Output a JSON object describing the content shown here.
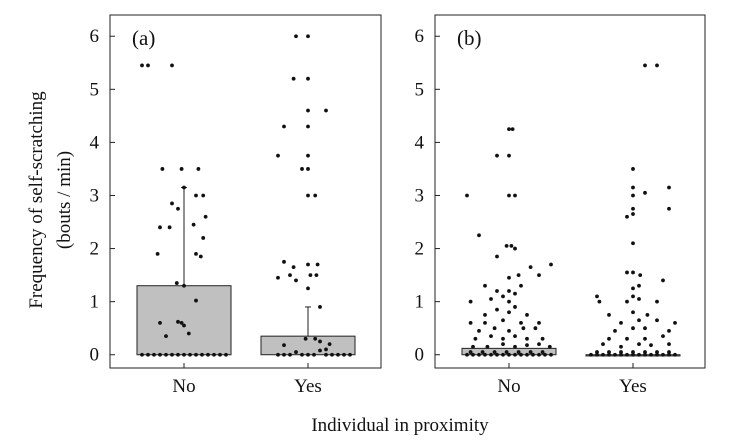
{
  "chart_data": [
    {
      "type": "bar",
      "panel_label": "(a)",
      "categories": [
        "No",
        "Yes"
      ],
      "values": [
        1.3,
        0.35
      ],
      "error_upper": [
        3.15,
        0.9
      ],
      "ylim": [
        -0.25,
        6.4
      ],
      "yticks": [
        0,
        1,
        2,
        3,
        4,
        5,
        6
      ],
      "bar_color": "#c0c0c0",
      "points": [
        [
          [
            -0.35,
            0
          ],
          [
            -0.3,
            0
          ],
          [
            -0.25,
            0
          ],
          [
            -0.2,
            0
          ],
          [
            -0.15,
            0
          ],
          [
            -0.1,
            0
          ],
          [
            -0.05,
            0
          ],
          [
            0,
            0
          ],
          [
            0.05,
            0
          ],
          [
            0.1,
            0
          ],
          [
            0.15,
            0
          ],
          [
            0.2,
            0
          ],
          [
            0.25,
            0
          ],
          [
            0.3,
            0
          ],
          [
            0.35,
            0
          ],
          [
            -0.35,
            5.45
          ],
          [
            -0.3,
            5.45
          ],
          [
            -0.1,
            5.45
          ],
          [
            -0.18,
            3.5
          ],
          [
            -0.02,
            3.5
          ],
          [
            0.12,
            3.5
          ],
          [
            0.0,
            3.15
          ],
          [
            0.1,
            3.0
          ],
          [
            0.16,
            3.0
          ],
          [
            -0.1,
            2.85
          ],
          [
            -0.05,
            2.75
          ],
          [
            0.08,
            2.45
          ],
          [
            0.18,
            2.6
          ],
          [
            -0.2,
            2.4
          ],
          [
            -0.12,
            2.4
          ],
          [
            0.16,
            2.2
          ],
          [
            -0.22,
            1.9
          ],
          [
            0.1,
            1.9
          ],
          [
            0.14,
            1.85
          ],
          [
            -0.06,
            1.35
          ],
          [
            0.0,
            1.3
          ],
          [
            0.1,
            1.02
          ],
          [
            -0.2,
            0.6
          ],
          [
            -0.05,
            0.62
          ],
          [
            -0.02,
            0.6
          ],
          [
            0.0,
            0.55
          ],
          [
            0.04,
            0.4
          ],
          [
            -0.15,
            0.35
          ]
        ],
        [
          [
            -0.25,
            0
          ],
          [
            -0.2,
            0
          ],
          [
            -0.15,
            0
          ],
          [
            -0.05,
            0
          ],
          [
            0.0,
            0
          ],
          [
            0.05,
            0
          ],
          [
            0.15,
            0
          ],
          [
            0.2,
            0
          ],
          [
            0.25,
            0
          ],
          [
            0.3,
            0
          ],
          [
            0.35,
            0
          ],
          [
            -0.1,
            0.05
          ],
          [
            0.1,
            0.08
          ],
          [
            -0.1,
            6.0
          ],
          [
            0.0,
            6.0
          ],
          [
            -0.12,
            5.2
          ],
          [
            0.0,
            5.2
          ],
          [
            0.0,
            4.6
          ],
          [
            0.15,
            4.6
          ],
          [
            -0.2,
            4.3
          ],
          [
            0.0,
            4.3
          ],
          [
            -0.25,
            3.75
          ],
          [
            0.0,
            3.75
          ],
          [
            -0.05,
            3.5
          ],
          [
            0.0,
            3.5
          ],
          [
            0.0,
            3.0
          ],
          [
            0.06,
            3.0
          ],
          [
            -0.2,
            1.75
          ],
          [
            -0.12,
            1.65
          ],
          [
            0.0,
            1.7
          ],
          [
            0.08,
            1.7
          ],
          [
            0.02,
            1.5
          ],
          [
            0.07,
            1.5
          ],
          [
            -0.25,
            1.45
          ],
          [
            -0.15,
            1.5
          ],
          [
            -0.1,
            1.4
          ],
          [
            0.0,
            1.25
          ],
          [
            0.1,
            0.9
          ],
          [
            0.06,
            0.3
          ],
          [
            -0.02,
            0.3
          ],
          [
            0.1,
            0.25
          ],
          [
            0.15,
            0.1
          ],
          [
            -0.2,
            0.18
          ],
          [
            0.18,
            0.2
          ]
        ]
      ]
    },
    {
      "type": "bar",
      "panel_label": "(b)",
      "categories": [
        "No",
        "Yes"
      ],
      "values": [
        0.12,
        0.0
      ],
      "error_upper": [
        0.12,
        0.0
      ],
      "ylim": [
        -0.25,
        6.4
      ],
      "yticks": [
        0,
        1,
        2,
        3,
        4,
        5,
        6
      ],
      "bar_color": "#c0c0c0",
      "points": [
        [
          [
            -0.35,
            0
          ],
          [
            -0.3,
            0
          ],
          [
            -0.25,
            0
          ],
          [
            -0.2,
            0
          ],
          [
            -0.15,
            0
          ],
          [
            -0.1,
            0
          ],
          [
            -0.05,
            0
          ],
          [
            0.0,
            0
          ],
          [
            0.05,
            0
          ],
          [
            0.1,
            0
          ],
          [
            0.15,
            0
          ],
          [
            0.2,
            0
          ],
          [
            0.25,
            0
          ],
          [
            0.3,
            0
          ],
          [
            0.35,
            0
          ],
          [
            -0.32,
            0.05
          ],
          [
            -0.22,
            0.05
          ],
          [
            -0.12,
            0.05
          ],
          [
            -0.02,
            0.05
          ],
          [
            0.08,
            0.05
          ],
          [
            0.18,
            0.05
          ],
          [
            0.28,
            0.05
          ],
          [
            -0.3,
            0.15
          ],
          [
            -0.18,
            0.15
          ],
          [
            -0.05,
            0.2
          ],
          [
            0.05,
            0.15
          ],
          [
            0.15,
            0.18
          ],
          [
            0.25,
            0.2
          ],
          [
            0.34,
            0.15
          ],
          [
            -0.28,
            0.3
          ],
          [
            -0.15,
            0.35
          ],
          [
            -0.05,
            0.3
          ],
          [
            0.05,
            0.35
          ],
          [
            0.15,
            0.3
          ],
          [
            0.28,
            0.3
          ],
          [
            -0.25,
            0.45
          ],
          [
            -0.12,
            0.5
          ],
          [
            0.0,
            0.45
          ],
          [
            0.12,
            0.5
          ],
          [
            0.22,
            0.5
          ],
          [
            -0.32,
            0.6
          ],
          [
            -0.2,
            0.6
          ],
          [
            -0.05,
            0.65
          ],
          [
            0.1,
            0.6
          ],
          [
            0.25,
            0.6
          ],
          [
            -0.2,
            0.75
          ],
          [
            0.0,
            0.8
          ],
          [
            0.15,
            0.75
          ],
          [
            -0.1,
            0.85
          ],
          [
            0.05,
            0.9
          ],
          [
            -0.32,
            1.0
          ],
          [
            -0.15,
            1.05
          ],
          [
            0.0,
            1.0
          ],
          [
            -0.05,
            1.1
          ],
          [
            0.05,
            1.15
          ],
          [
            0.0,
            1.2
          ],
          [
            -0.1,
            1.2
          ],
          [
            -0.2,
            1.3
          ],
          [
            0.1,
            1.3
          ],
          [
            0.0,
            1.45
          ],
          [
            0.08,
            1.5
          ],
          [
            0.25,
            1.5
          ],
          [
            0.18,
            1.65
          ],
          [
            0.35,
            1.7
          ],
          [
            -0.1,
            1.85
          ],
          [
            0.05,
            2.0
          ],
          [
            -0.02,
            2.05
          ],
          [
            0.02,
            2.05
          ],
          [
            -0.25,
            2.25
          ],
          [
            -0.35,
            3.0
          ],
          [
            0.0,
            3.0
          ],
          [
            0.05,
            3.0
          ],
          [
            -0.1,
            3.75
          ],
          [
            0.0,
            3.75
          ],
          [
            0.0,
            4.25
          ],
          [
            0.03,
            4.25
          ]
        ],
        [
          [
            -0.35,
            0
          ],
          [
            -0.3,
            0
          ],
          [
            -0.25,
            0
          ],
          [
            -0.2,
            0
          ],
          [
            -0.15,
            0
          ],
          [
            -0.1,
            0
          ],
          [
            -0.05,
            0
          ],
          [
            0.0,
            0
          ],
          [
            0.05,
            0
          ],
          [
            0.1,
            0
          ],
          [
            0.15,
            0
          ],
          [
            0.2,
            0
          ],
          [
            0.25,
            0
          ],
          [
            0.3,
            0
          ],
          [
            0.35,
            0
          ],
          [
            -0.3,
            0.05
          ],
          [
            -0.2,
            0.05
          ],
          [
            -0.1,
            0.05
          ],
          [
            0.0,
            0.05
          ],
          [
            0.1,
            0.05
          ],
          [
            0.2,
            0.05
          ],
          [
            0.3,
            0.05
          ],
          [
            -0.25,
            0.2
          ],
          [
            -0.1,
            0.15
          ],
          [
            0.05,
            0.2
          ],
          [
            0.15,
            0.18
          ],
          [
            0.3,
            0.2
          ],
          [
            -0.2,
            0.3
          ],
          [
            -0.05,
            0.3
          ],
          [
            0.1,
            0.3
          ],
          [
            0.25,
            0.35
          ],
          [
            -0.15,
            0.45
          ],
          [
            0.0,
            0.5
          ],
          [
            0.1,
            0.5
          ],
          [
            0.3,
            0.45
          ],
          [
            -0.1,
            0.6
          ],
          [
            0.05,
            0.65
          ],
          [
            0.2,
            0.65
          ],
          [
            0.35,
            0.6
          ],
          [
            -0.2,
            0.75
          ],
          [
            0.0,
            0.8
          ],
          [
            0.12,
            0.75
          ],
          [
            -0.28,
            1.0
          ],
          [
            -0.05,
            1.0
          ],
          [
            0.0,
            1.1
          ],
          [
            0.05,
            1.05
          ],
          [
            0.2,
            1.0
          ],
          [
            -0.3,
            1.1
          ],
          [
            0.0,
            1.25
          ],
          [
            0.05,
            1.3
          ],
          [
            0.25,
            1.4
          ],
          [
            -0.05,
            1.55
          ],
          [
            0.0,
            1.55
          ],
          [
            0.06,
            1.5
          ],
          [
            0.0,
            2.1
          ],
          [
            -0.05,
            2.6
          ],
          [
            0.0,
            2.65
          ],
          [
            0.0,
            2.75
          ],
          [
            0.3,
            2.75
          ],
          [
            0.0,
            3.0
          ],
          [
            0.1,
            3.05
          ],
          [
            0.0,
            3.15
          ],
          [
            0.3,
            3.15
          ],
          [
            0.0,
            3.5
          ],
          [
            0.1,
            5.45
          ],
          [
            0.2,
            5.45
          ]
        ]
      ]
    }
  ],
  "figure": {
    "ylabel_line1": "Frequency of self-scratching",
    "ylabel_line2": "(bouts / min)",
    "xlabel": "Individual in proximity"
  }
}
